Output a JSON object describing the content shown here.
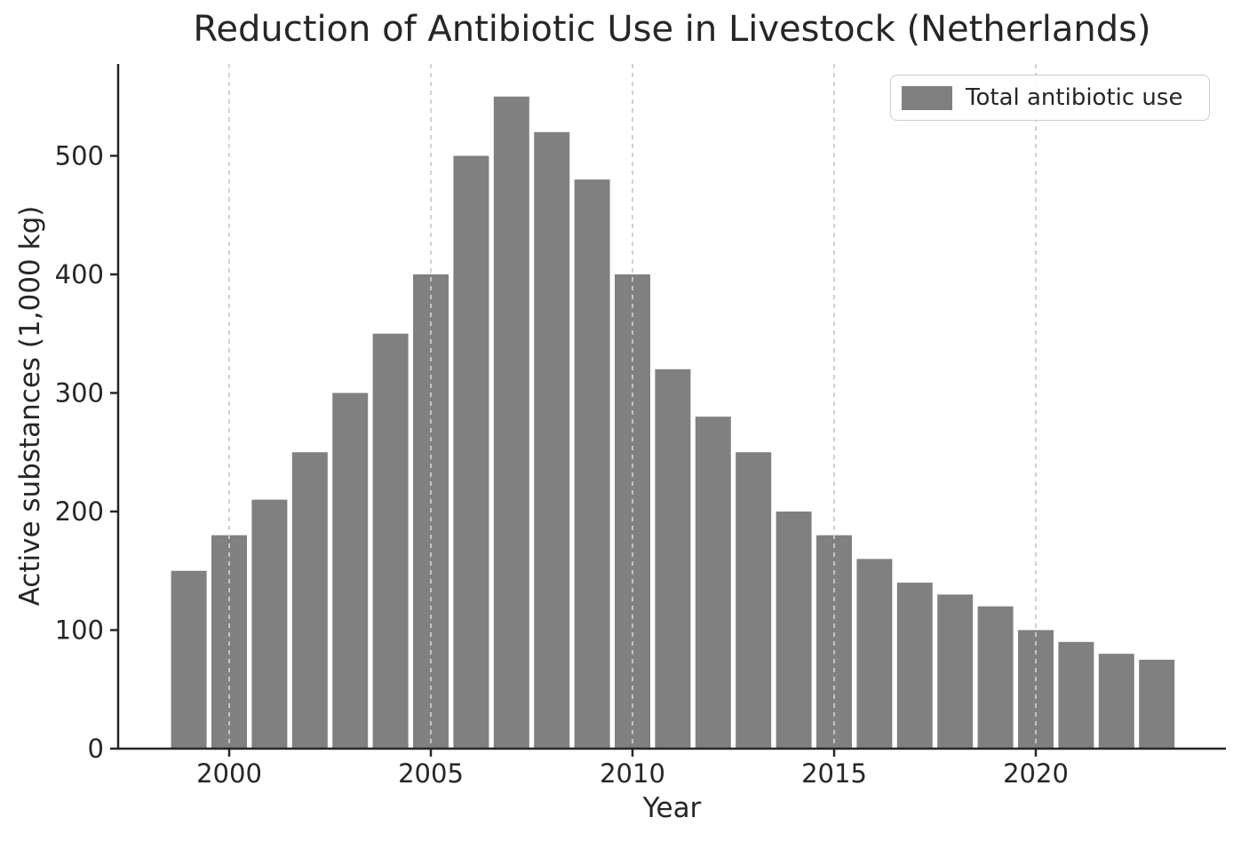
{
  "chart_data": {
    "type": "bar",
    "title": "Reduction of Antibiotic Use in Livestock (Netherlands)",
    "xlabel": "Year",
    "ylabel": "Active substances (1,000 kg)",
    "categories": [
      1999,
      2000,
      2001,
      2002,
      2003,
      2004,
      2005,
      2006,
      2007,
      2008,
      2009,
      2010,
      2011,
      2012,
      2013,
      2014,
      2015,
      2016,
      2017,
      2018,
      2019,
      2020,
      2021,
      2022,
      2023
    ],
    "values": [
      150,
      180,
      210,
      250,
      300,
      350,
      400,
      500,
      550,
      520,
      480,
      400,
      320,
      280,
      250,
      200,
      180,
      160,
      140,
      130,
      120,
      100,
      90,
      80,
      75
    ],
    "series": [
      {
        "name": "Total antibiotic use",
        "values": [
          150,
          180,
          210,
          250,
          300,
          350,
          400,
          500,
          550,
          520,
          480,
          400,
          320,
          280,
          250,
          200,
          180,
          160,
          140,
          130,
          120,
          100,
          90,
          80,
          75
        ]
      }
    ],
    "legend": {
      "label": "Total antibiotic use",
      "position": "upper right"
    },
    "ylim": [
      0,
      577.5
    ],
    "yticks": [
      0,
      100,
      200,
      300,
      400,
      500
    ],
    "xticks": [
      2000,
      2005,
      2010,
      2015,
      2020
    ],
    "grid": "vertical-dashed",
    "colors": {
      "bar": "#808080",
      "axis": "#262626",
      "text": "#262626",
      "grid": "#cccccc",
      "legend_border": "#cccccc",
      "background": "#ffffff"
    }
  }
}
